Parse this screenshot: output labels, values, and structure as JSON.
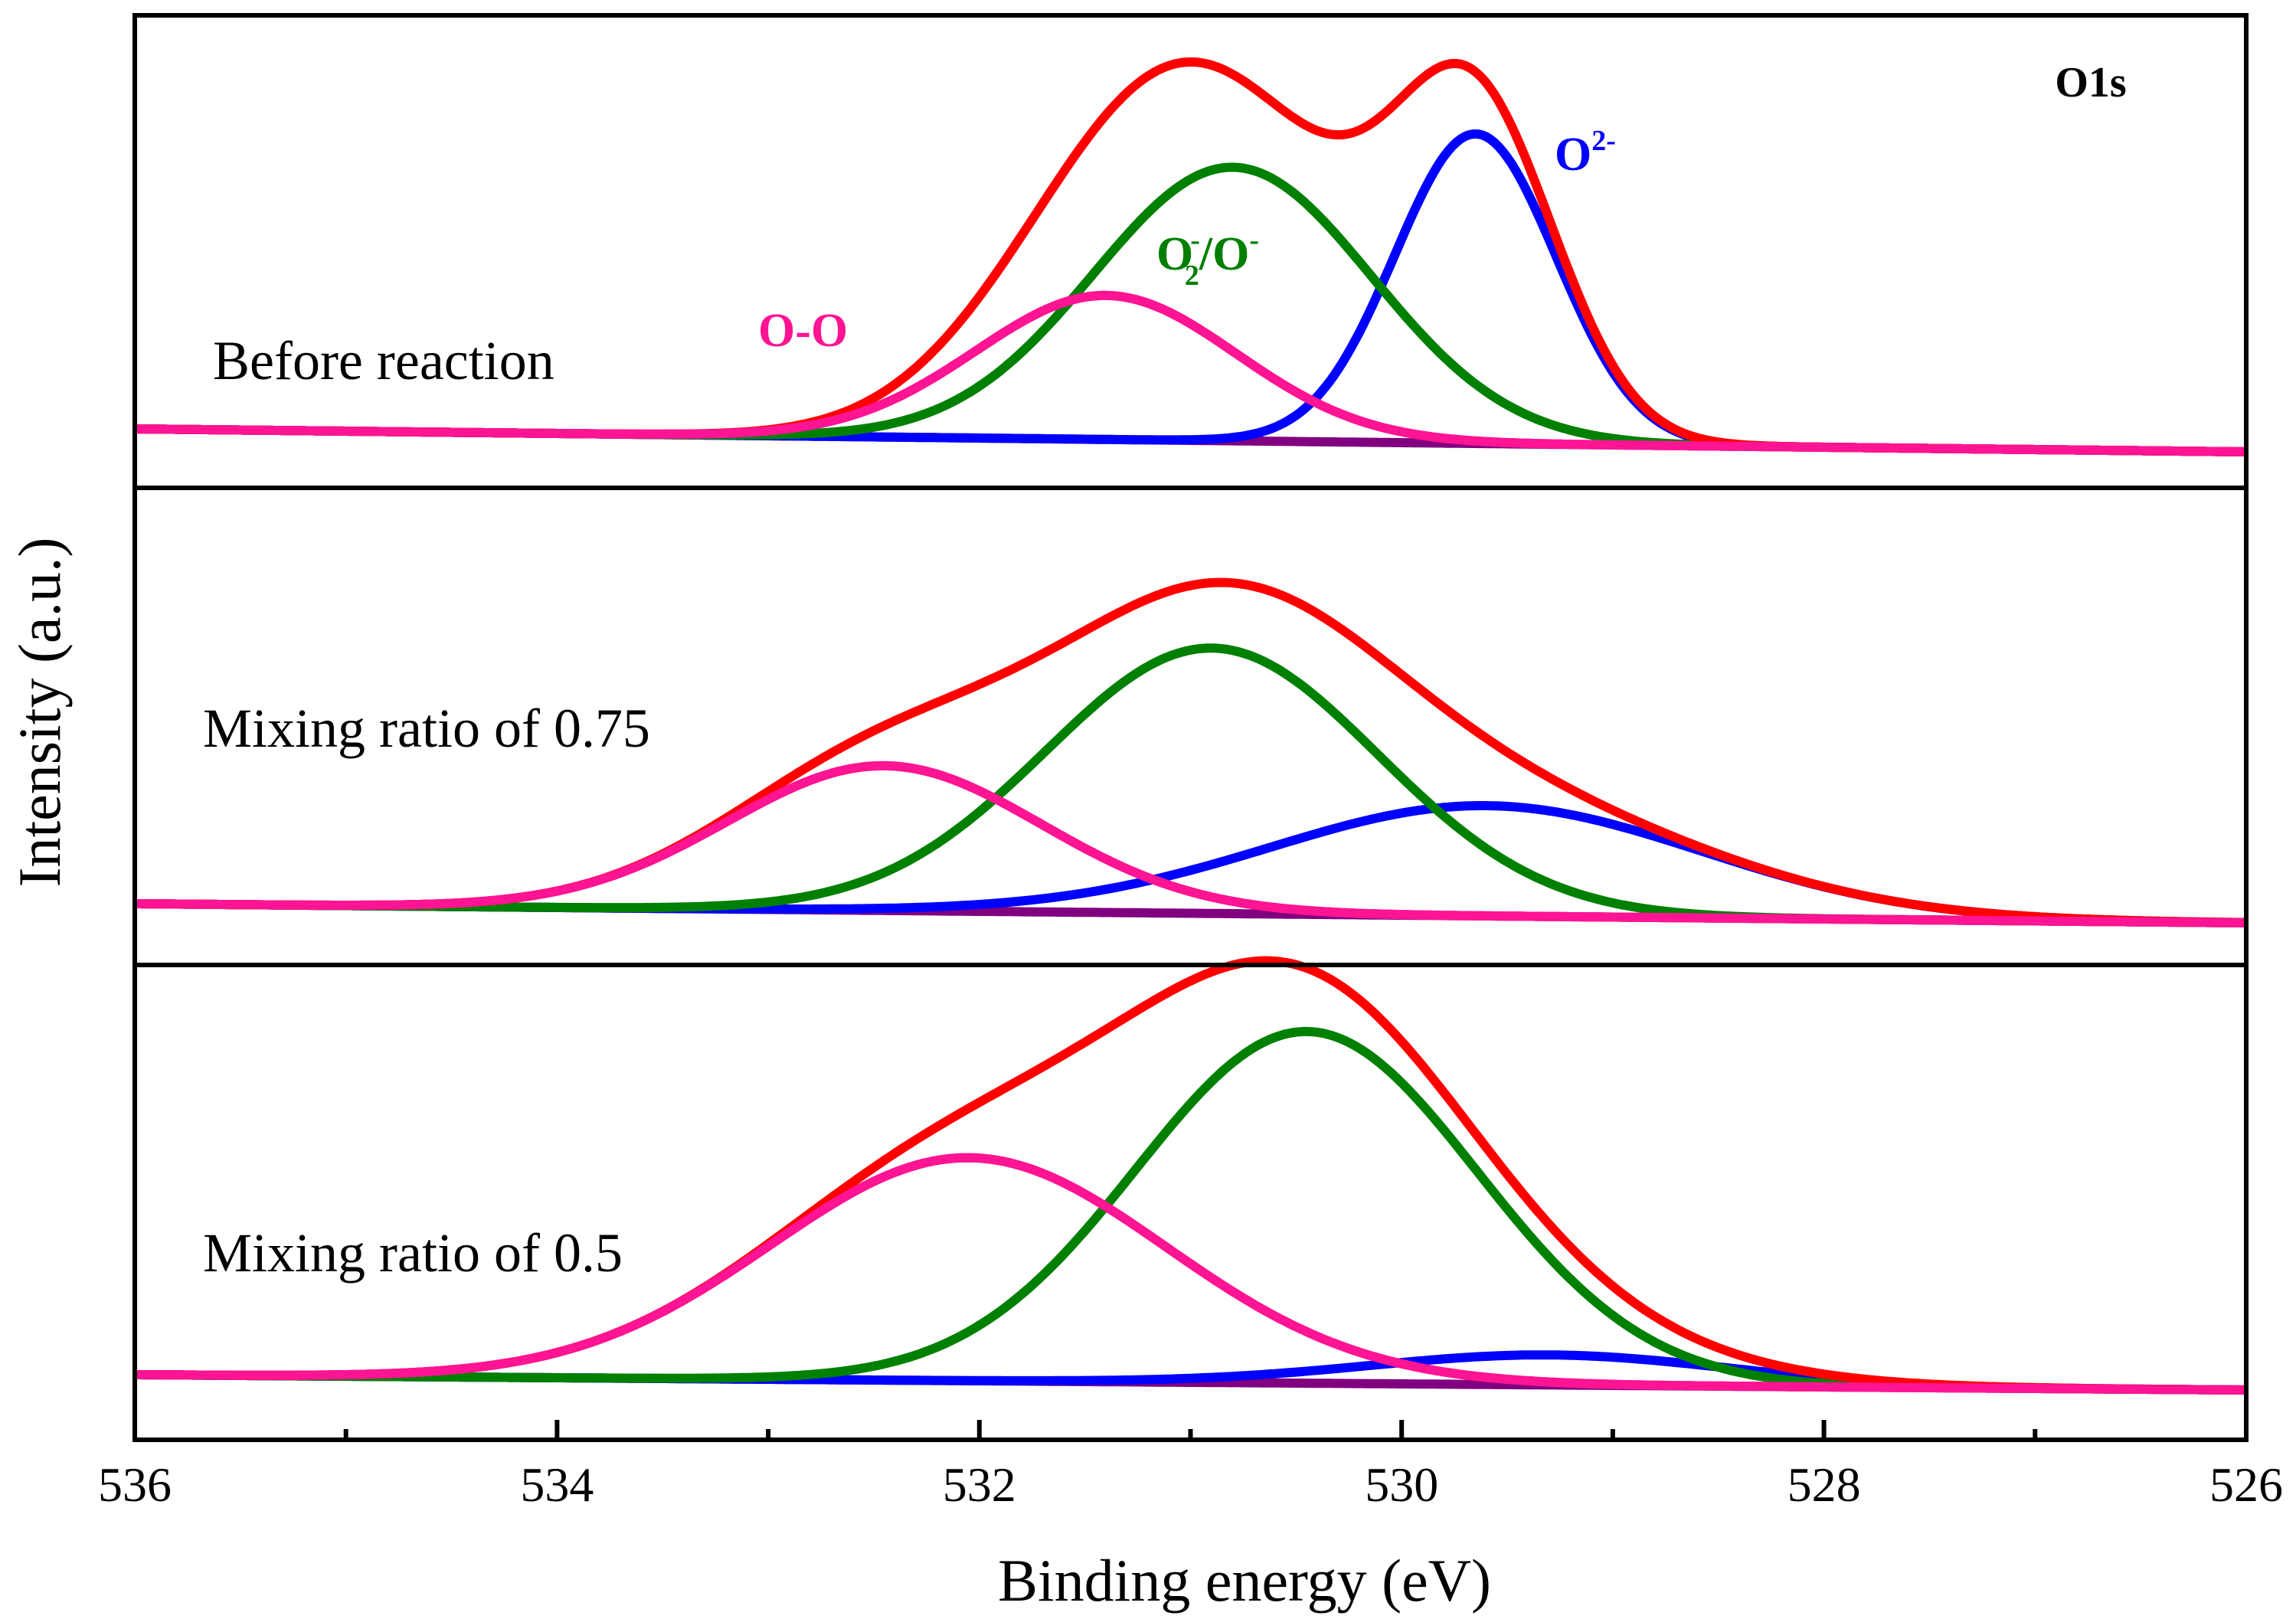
{
  "chart_data": {
    "type": "line",
    "title": "O1s",
    "xlabel": "Binding energy (eV)",
    "ylabel": "Intensity (a.u.)",
    "xlim": [
      536,
      526
    ],
    "x_ticks": [
      536,
      534,
      532,
      530,
      528,
      526
    ],
    "x_tick_labels": [
      "536",
      "534",
      "532",
      "530",
      "528",
      "526"
    ],
    "x_minor_ticks": [
      535,
      533,
      531,
      529,
      527
    ],
    "colors": {
      "envelope": "#ff0000",
      "o_minus": "#008000",
      "o2_minus": "#0000ff",
      "o_o": "#ff1493",
      "background": "#800080",
      "frame": "#000000"
    },
    "panels": [
      {
        "label": "Before reaction",
        "show_title": true,
        "peak_labels": {
          "o_o": "O-O",
          "o_minus_base": "O",
          "o_minus_sub": "2",
          "o_minus_sup": "-",
          "o_minus_rest": "/O",
          "o_minus_sup2": "-",
          "o2_base": "O",
          "o2_sup": "2-"
        },
        "baseline": {
          "start": 0.03,
          "end": 0.0
        },
        "peaks": [
          {
            "name": "O-O",
            "key": "o_o",
            "center": 531.4,
            "height": 0.4,
            "fwhm": 1.45
          },
          {
            "name": "O2-/O-",
            "key": "o_minus",
            "center": 530.8,
            "height": 0.76,
            "fwhm": 1.55
          },
          {
            "name": "O2-",
            "key": "o2_minus",
            "center": 529.65,
            "height": 0.86,
            "fwhm": 0.9
          }
        ]
      },
      {
        "label": "Mixing ratio of 0.75",
        "show_title": false,
        "baseline": {
          "start": 0.03,
          "end": 0.0
        },
        "peaks": [
          {
            "name": "O-O",
            "key": "o_o",
            "center": 532.45,
            "height": 0.42,
            "fwhm": 1.75
          },
          {
            "name": "O2-/O-",
            "key": "o_minus",
            "center": 530.9,
            "height": 0.77,
            "fwhm": 1.85
          },
          {
            "name": "O2-",
            "key": "o2_minus",
            "center": 529.6,
            "height": 0.32,
            "fwhm": 2.4
          }
        ]
      },
      {
        "label": "Mixing ratio of 0.5",
        "show_title": false,
        "baseline": {
          "start": 0.03,
          "end": 0.0
        },
        "peaks": [
          {
            "name": "O-O",
            "key": "o_o",
            "center": 532.05,
            "height": 0.52,
            "fwhm": 2.2
          },
          {
            "name": "O2-/O-",
            "key": "o_minus",
            "center": 530.45,
            "height": 0.82,
            "fwhm": 1.9
          },
          {
            "name": "O2-",
            "key": "o2_minus",
            "center": 529.3,
            "height": 0.07,
            "fwhm": 2.0
          }
        ]
      }
    ]
  }
}
